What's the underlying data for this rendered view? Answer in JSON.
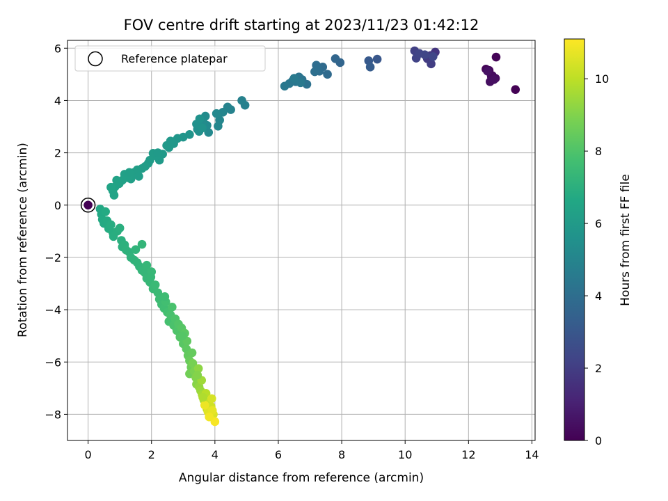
{
  "chart_data": {
    "type": "scatter",
    "title": "FOV centre drift starting at 2023/11/23 01:42:12",
    "xlabel": "Angular distance from reference (arcmin)",
    "ylabel": "Rotation from reference (arcmin)",
    "xlim": [
      -0.65,
      14.1
    ],
    "ylim": [
      -9.0,
      6.3
    ],
    "xticks": [
      0,
      2,
      4,
      6,
      8,
      10,
      12,
      14
    ],
    "yticks": [
      -8,
      -6,
      -4,
      -2,
      0,
      2,
      4,
      6
    ],
    "grid": true,
    "legend": {
      "placement": "upper-left",
      "entries": [
        {
          "label": "Reference platepar",
          "marker": "open-circle"
        }
      ]
    },
    "reference_point": {
      "x": 0,
      "y": 0
    },
    "colorbar": {
      "label": "Hours from first FF file",
      "range": [
        0,
        11.1
      ],
      "ticks": [
        0,
        2,
        4,
        6,
        8,
        10
      ],
      "colormap": "viridis"
    },
    "points": [
      {
        "x": 0,
        "y": 0,
        "c": 0
      },
      {
        "x": 13.48,
        "y": 4.42,
        "c": 0.05
      },
      {
        "x": 12.87,
        "y": 5.66,
        "c": 0.1
      },
      {
        "x": 12.55,
        "y": 5.2,
        "c": 0.15
      },
      {
        "x": 12.65,
        "y": 5.15,
        "c": 0.2
      },
      {
        "x": 12.75,
        "y": 4.95,
        "c": 0.25
      },
      {
        "x": 12.85,
        "y": 4.85,
        "c": 0.3
      },
      {
        "x": 12.72,
        "y": 4.92,
        "c": 0.35
      },
      {
        "x": 12.68,
        "y": 4.72,
        "c": 0.4
      },
      {
        "x": 12.8,
        "y": 4.8,
        "c": 0.45
      },
      {
        "x": 12.6,
        "y": 5.12,
        "c": 0.5
      },
      {
        "x": 10.95,
        "y": 5.85,
        "c": 1.7
      },
      {
        "x": 10.8,
        "y": 5.72,
        "c": 1.8
      },
      {
        "x": 10.7,
        "y": 5.6,
        "c": 1.9
      },
      {
        "x": 10.82,
        "y": 5.4,
        "c": 2.0
      },
      {
        "x": 10.3,
        "y": 5.9,
        "c": 2.1
      },
      {
        "x": 10.35,
        "y": 5.62,
        "c": 2.2
      },
      {
        "x": 10.45,
        "y": 5.8,
        "c": 2.25
      },
      {
        "x": 10.62,
        "y": 5.75,
        "c": 2.3
      },
      {
        "x": 10.88,
        "y": 5.68,
        "c": 2.35
      },
      {
        "x": 9.12,
        "y": 5.58,
        "c": 3.0
      },
      {
        "x": 8.85,
        "y": 5.52,
        "c": 3.1
      },
      {
        "x": 8.9,
        "y": 5.28,
        "c": 3.2
      },
      {
        "x": 7.95,
        "y": 5.45,
        "c": 3.6
      },
      {
        "x": 7.8,
        "y": 5.6,
        "c": 3.65
      },
      {
        "x": 7.55,
        "y": 5.0,
        "c": 3.8
      },
      {
        "x": 7.4,
        "y": 5.28,
        "c": 3.85
      },
      {
        "x": 7.3,
        "y": 5.12,
        "c": 3.9
      },
      {
        "x": 7.2,
        "y": 5.35,
        "c": 3.95
      },
      {
        "x": 7.25,
        "y": 5.2,
        "c": 4.0
      },
      {
        "x": 7.15,
        "y": 5.1,
        "c": 4.05
      },
      {
        "x": 6.9,
        "y": 4.62,
        "c": 4.15
      },
      {
        "x": 6.75,
        "y": 4.8,
        "c": 4.2
      },
      {
        "x": 6.65,
        "y": 4.9,
        "c": 4.25
      },
      {
        "x": 6.55,
        "y": 4.72,
        "c": 4.3
      },
      {
        "x": 6.45,
        "y": 4.75,
        "c": 4.35
      },
      {
        "x": 6.35,
        "y": 4.65,
        "c": 4.4
      },
      {
        "x": 6.2,
        "y": 4.55,
        "c": 4.45
      },
      {
        "x": 6.7,
        "y": 4.68,
        "c": 4.5
      },
      {
        "x": 6.5,
        "y": 4.85,
        "c": 4.55
      },
      {
        "x": 4.95,
        "y": 3.82,
        "c": 4.8
      },
      {
        "x": 4.85,
        "y": 4.0,
        "c": 4.85
      },
      {
        "x": 4.5,
        "y": 3.65,
        "c": 4.9
      },
      {
        "x": 4.4,
        "y": 3.75,
        "c": 4.95
      },
      {
        "x": 4.25,
        "y": 3.55,
        "c": 5.0
      },
      {
        "x": 4.15,
        "y": 3.25,
        "c": 5.05
      },
      {
        "x": 4.1,
        "y": 3.02,
        "c": 5.1
      },
      {
        "x": 4.05,
        "y": 3.5,
        "c": 5.15
      },
      {
        "x": 3.8,
        "y": 2.78,
        "c": 5.2
      },
      {
        "x": 3.75,
        "y": 3.05,
        "c": 5.25
      },
      {
        "x": 3.7,
        "y": 3.4,
        "c": 5.3
      },
      {
        "x": 3.62,
        "y": 3.22,
        "c": 5.35
      },
      {
        "x": 3.55,
        "y": 3.0,
        "c": 5.4
      },
      {
        "x": 3.5,
        "y": 2.82,
        "c": 5.45
      },
      {
        "x": 3.45,
        "y": 2.9,
        "c": 5.5
      },
      {
        "x": 3.42,
        "y": 3.1,
        "c": 5.55
      },
      {
        "x": 3.52,
        "y": 3.3,
        "c": 5.58
      },
      {
        "x": 3.6,
        "y": 2.95,
        "c": 5.62
      },
      {
        "x": 3.2,
        "y": 2.7,
        "c": 5.7
      },
      {
        "x": 3.0,
        "y": 2.6,
        "c": 5.75
      },
      {
        "x": 2.82,
        "y": 2.55,
        "c": 5.8
      },
      {
        "x": 2.7,
        "y": 2.35,
        "c": 5.85
      },
      {
        "x": 2.55,
        "y": 2.2,
        "c": 5.9
      },
      {
        "x": 2.48,
        "y": 2.28,
        "c": 5.93
      },
      {
        "x": 2.35,
        "y": 1.95,
        "c": 5.96
      },
      {
        "x": 2.25,
        "y": 1.72,
        "c": 6.0
      },
      {
        "x": 2.15,
        "y": 1.88,
        "c": 6.02
      },
      {
        "x": 2.05,
        "y": 1.98,
        "c": 6.05
      },
      {
        "x": 1.95,
        "y": 1.72,
        "c": 6.08
      },
      {
        "x": 1.9,
        "y": 1.6,
        "c": 6.1
      },
      {
        "x": 1.8,
        "y": 1.48,
        "c": 6.12
      },
      {
        "x": 1.7,
        "y": 1.4,
        "c": 6.15
      },
      {
        "x": 1.55,
        "y": 1.35,
        "c": 6.18
      },
      {
        "x": 1.45,
        "y": 1.25,
        "c": 6.2
      },
      {
        "x": 1.35,
        "y": 1.0,
        "c": 6.23
      },
      {
        "x": 1.25,
        "y": 1.05,
        "c": 6.26
      },
      {
        "x": 1.15,
        "y": 1.18,
        "c": 6.28
      },
      {
        "x": 1.08,
        "y": 0.95,
        "c": 6.3
      },
      {
        "x": 0.98,
        "y": 0.82,
        "c": 6.33
      },
      {
        "x": 0.9,
        "y": 0.95,
        "c": 6.36
      },
      {
        "x": 0.85,
        "y": 0.7,
        "c": 6.38
      },
      {
        "x": 0.78,
        "y": 0.55,
        "c": 6.4
      },
      {
        "x": 0.82,
        "y": 0.38,
        "c": 6.42
      },
      {
        "x": 0.72,
        "y": 0.68,
        "c": 6.45
      },
      {
        "x": 1.3,
        "y": 1.25,
        "c": 6.24
      },
      {
        "x": 1.6,
        "y": 1.1,
        "c": 6.17
      },
      {
        "x": 2.2,
        "y": 2.0,
        "c": 5.98
      },
      {
        "x": 2.6,
        "y": 2.45,
        "c": 5.88
      },
      {
        "x": 0.38,
        "y": -0.15,
        "c": 6.6
      },
      {
        "x": 0.42,
        "y": -0.35,
        "c": 6.65
      },
      {
        "x": 0.45,
        "y": -0.55,
        "c": 6.7
      },
      {
        "x": 0.5,
        "y": -0.7,
        "c": 6.72
      },
      {
        "x": 0.55,
        "y": -0.25,
        "c": 6.74
      },
      {
        "x": 0.6,
        "y": -0.6,
        "c": 6.76
      },
      {
        "x": 0.65,
        "y": -0.9,
        "c": 6.8
      },
      {
        "x": 0.72,
        "y": -0.75,
        "c": 6.83
      },
      {
        "x": 0.78,
        "y": -1.05,
        "c": 6.86
      },
      {
        "x": 0.8,
        "y": -1.2,
        "c": 6.9
      },
      {
        "x": 0.92,
        "y": -1.0,
        "c": 6.92
      },
      {
        "x": 1.0,
        "y": -0.88,
        "c": 6.95
      },
      {
        "x": 1.05,
        "y": -1.35,
        "c": 6.98
      },
      {
        "x": 1.08,
        "y": -1.6,
        "c": 7.02
      },
      {
        "x": 1.15,
        "y": -1.52,
        "c": 7.05
      },
      {
        "x": 1.2,
        "y": -1.72,
        "c": 7.08
      },
      {
        "x": 1.3,
        "y": -1.8,
        "c": 7.1
      },
      {
        "x": 1.35,
        "y": -2.0,
        "c": 7.12
      },
      {
        "x": 1.45,
        "y": -2.1,
        "c": 7.15
      },
      {
        "x": 1.5,
        "y": -1.7,
        "c": 7.17
      },
      {
        "x": 1.55,
        "y": -2.2,
        "c": 7.2
      },
      {
        "x": 1.62,
        "y": -2.35,
        "c": 7.23
      },
      {
        "x": 1.7,
        "y": -1.5,
        "c": 7.25
      },
      {
        "x": 1.7,
        "y": -2.5,
        "c": 7.27
      },
      {
        "x": 1.8,
        "y": -2.6,
        "c": 7.3
      },
      {
        "x": 1.85,
        "y": -2.3,
        "c": 7.32
      },
      {
        "x": 1.85,
        "y": -2.8,
        "c": 7.35
      },
      {
        "x": 1.95,
        "y": -2.95,
        "c": 7.38
      },
      {
        "x": 2.0,
        "y": -2.55,
        "c": 7.4
      },
      {
        "x": 2.05,
        "y": -3.2,
        "c": 7.43
      },
      {
        "x": 2.12,
        "y": -3.05,
        "c": 7.46
      },
      {
        "x": 2.2,
        "y": -3.35,
        "c": 7.5
      },
      {
        "x": 2.25,
        "y": -3.6,
        "c": 7.55
      },
      {
        "x": 2.32,
        "y": -3.8,
        "c": 7.6
      },
      {
        "x": 2.4,
        "y": -3.95,
        "c": 7.65
      },
      {
        "x": 2.45,
        "y": -3.7,
        "c": 7.7
      },
      {
        "x": 2.5,
        "y": -4.1,
        "c": 7.75
      },
      {
        "x": 2.55,
        "y": -4.45,
        "c": 7.8
      },
      {
        "x": 2.6,
        "y": -4.2,
        "c": 7.85
      },
      {
        "x": 2.65,
        "y": -3.9,
        "c": 7.88
      },
      {
        "x": 2.7,
        "y": -4.6,
        "c": 7.92
      },
      {
        "x": 2.75,
        "y": -4.35,
        "c": 7.96
      },
      {
        "x": 2.8,
        "y": -4.8,
        "c": 8.0
      },
      {
        "x": 2.85,
        "y": -4.55,
        "c": 8.05
      },
      {
        "x": 2.9,
        "y": -5.05,
        "c": 8.1
      },
      {
        "x": 2.95,
        "y": -4.7,
        "c": 8.15
      },
      {
        "x": 3.0,
        "y": -5.3,
        "c": 8.2
      },
      {
        "x": 3.05,
        "y": -4.9,
        "c": 8.25
      },
      {
        "x": 3.1,
        "y": -5.5,
        "c": 8.3
      },
      {
        "x": 3.12,
        "y": -5.2,
        "c": 8.35
      },
      {
        "x": 3.15,
        "y": -5.75,
        "c": 8.4
      },
      {
        "x": 3.2,
        "y": -5.95,
        "c": 8.5
      },
      {
        "x": 3.25,
        "y": -6.2,
        "c": 8.6
      },
      {
        "x": 3.2,
        "y": -6.45,
        "c": 8.7
      },
      {
        "x": 3.3,
        "y": -6.05,
        "c": 8.8
      },
      {
        "x": 3.35,
        "y": -6.35,
        "c": 8.9
      },
      {
        "x": 3.4,
        "y": -6.6,
        "c": 9.0
      },
      {
        "x": 3.42,
        "y": -6.85,
        "c": 9.1
      },
      {
        "x": 3.48,
        "y": -6.25,
        "c": 9.2
      },
      {
        "x": 3.5,
        "y": -6.95,
        "c": 9.3
      },
      {
        "x": 3.55,
        "y": -7.1,
        "c": 9.4
      },
      {
        "x": 3.58,
        "y": -6.7,
        "c": 9.5
      },
      {
        "x": 3.6,
        "y": -7.25,
        "c": 9.6
      },
      {
        "x": 3.65,
        "y": -7.45,
        "c": 9.7
      },
      {
        "x": 3.7,
        "y": -7.6,
        "c": 9.8
      },
      {
        "x": 3.72,
        "y": -7.2,
        "c": 9.9
      },
      {
        "x": 3.75,
        "y": -7.8,
        "c": 10.0
      },
      {
        "x": 3.8,
        "y": -7.55,
        "c": 10.1
      },
      {
        "x": 3.85,
        "y": -7.95,
        "c": 10.2
      },
      {
        "x": 3.88,
        "y": -7.7,
        "c": 10.3
      },
      {
        "x": 3.9,
        "y": -7.4,
        "c": 10.4
      },
      {
        "x": 3.95,
        "y": -8.0,
        "c": 10.5
      },
      {
        "x": 3.78,
        "y": -7.9,
        "c": 10.6
      },
      {
        "x": 3.92,
        "y": -7.85,
        "c": 10.7
      },
      {
        "x": 3.68,
        "y": -7.65,
        "c": 10.8
      },
      {
        "x": 4.0,
        "y": -8.28,
        "c": 11.0
      },
      {
        "x": 3.82,
        "y": -8.1,
        "c": 10.9
      },
      {
        "x": 3.62,
        "y": -7.35,
        "c": 9.75
      },
      {
        "x": 3.45,
        "y": -6.5,
        "c": 9.05
      },
      {
        "x": 3.28,
        "y": -5.65,
        "c": 8.45
      },
      {
        "x": 2.98,
        "y": -5.0,
        "c": 8.12
      },
      {
        "x": 2.42,
        "y": -3.5,
        "c": 7.58
      },
      {
        "x": 1.98,
        "y": -2.75,
        "c": 7.36
      }
    ]
  }
}
